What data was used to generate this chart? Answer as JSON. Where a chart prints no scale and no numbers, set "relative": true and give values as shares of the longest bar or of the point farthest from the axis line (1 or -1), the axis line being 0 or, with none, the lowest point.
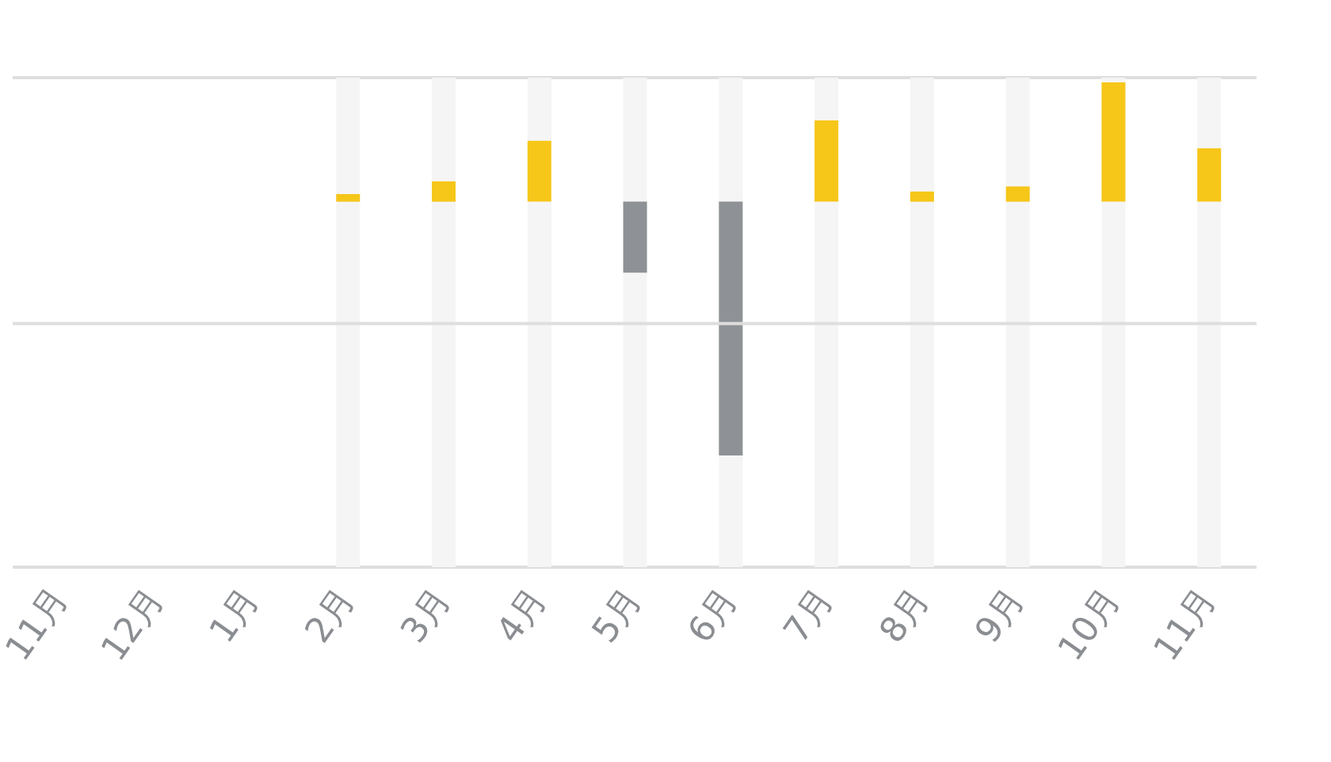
{
  "chart_data": {
    "type": "bar",
    "relative": true,
    "ref_lines": [
      {
        "axis": "y",
        "value": -0.48,
        "color": "#dedede"
      }
    ],
    "categories": [
      "11月",
      "12月",
      "1月",
      "2月",
      "3月",
      "4月",
      "5月",
      "6月",
      "7月",
      "8月",
      "9月",
      "10月",
      "11月"
    ],
    "values": [
      null,
      null,
      null,
      0.03,
      0.08,
      0.24,
      -0.28,
      -1,
      0.32,
      0.04,
      0.06,
      0.47,
      0.21
    ],
    "colors": [
      "#f6c619",
      "#f6c619",
      "#f6c619",
      "#f6c619",
      "#f6c619",
      "#f6c619",
      "#8e9296",
      "#8e9296",
      "#f6c619",
      "#f6c619",
      "#f6c619",
      "#f6c619",
      "#f6c619"
    ]
  }
}
